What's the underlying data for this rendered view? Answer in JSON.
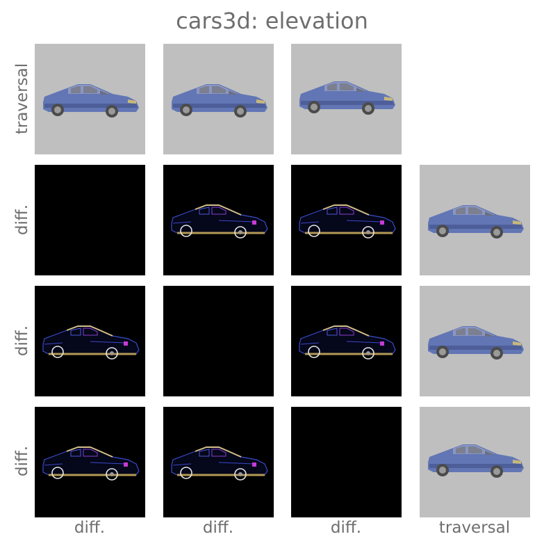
{
  "title": "cars3d: elevation",
  "row_labels": [
    "traversal",
    "diff.",
    "diff.",
    "diff."
  ],
  "col_labels": [
    "diff.",
    "diff.",
    "diff.",
    "traversal"
  ],
  "colors": {
    "tile_background": "#bfbfbf",
    "diff_background": "#000000",
    "car_body": "#5f74b3",
    "text": "#6e6e6e"
  },
  "grid": [
    [
      "car-image",
      "car-image",
      "car-image",
      "empty"
    ],
    [
      "blank-diff",
      "car-diff",
      "car-diff",
      "car-image"
    ],
    [
      "car-diff",
      "blank-diff",
      "car-diff",
      "car-image"
    ],
    [
      "car-diff",
      "car-diff",
      "blank-diff",
      "car-image"
    ]
  ]
}
